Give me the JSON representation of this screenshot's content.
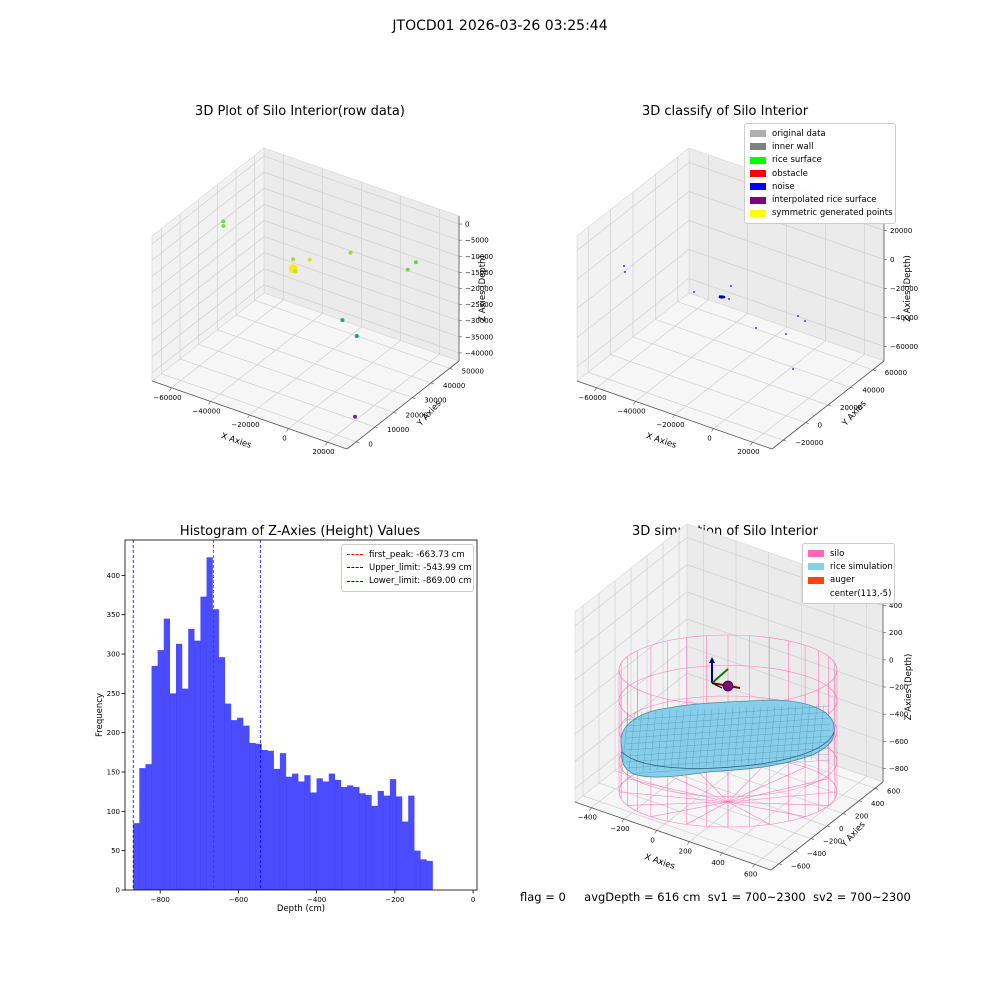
{
  "page": {
    "suptitle": "JTOCD01 2026-03-26 03:25:44"
  },
  "chart_data": [
    {
      "type": "scatter",
      "title": "3D Plot of Silo Interior(row data)",
      "xlabel": "X Axies",
      "ylabel": "Y Axies",
      "zlabel": "Z Axies (Depth)",
      "x_ticks": [
        "−60000",
        "−40000",
        "−20000",
        "0",
        "20000"
      ],
      "y_ticks": [
        "0",
        "10000",
        "20000",
        "30000",
        "40000",
        "50000"
      ],
      "z_ticks": [
        "−40000",
        "−35000",
        "−30000",
        "−25000",
        "−20000",
        "−15000",
        "−10000",
        "−5000",
        "0"
      ],
      "xlim": [
        -65000,
        30000
      ],
      "ylim": [
        0,
        55000
      ],
      "zlim": [
        -40000,
        0
      ],
      "points": [
        {
          "x": -62000,
          "y": 32000,
          "z": -9500,
          "color": "#7ad151"
        },
        {
          "x": -60000,
          "y": 30000,
          "z": -9500,
          "color": "#86d549"
        },
        {
          "x": -26000,
          "y": 30000,
          "z": -12000,
          "color": "#a0da39"
        },
        {
          "x": -22000,
          "y": 26000,
          "z": -12000,
          "color": "#fde725"
        },
        {
          "x": -21000,
          "y": 26000,
          "z": -12500,
          "color": "#c8e020"
        },
        {
          "x": -18000,
          "y": 30000,
          "z": -10500,
          "color": "#d2e21b"
        },
        {
          "x": -8000,
          "y": 40000,
          "z": -11000,
          "color": "#9fda3a"
        },
        {
          "x": -2000,
          "y": 30000,
          "z": -24000,
          "color": "#22a884"
        },
        {
          "x": 5000,
          "y": 30000,
          "z": -27000,
          "color": "#1f9e89"
        },
        {
          "x": 14000,
          "y": 46000,
          "z": -14000,
          "color": "#7ad151"
        },
        {
          "x": 12000,
          "y": 52000,
          "z": -15000,
          "color": "#6ece58"
        },
        {
          "x": 22000,
          "y": 12000,
          "z": -38000,
          "color": "#6a2c8f"
        }
      ]
    },
    {
      "type": "scatter",
      "title": "3D classify of Silo Interior",
      "xlabel": "X Axies",
      "ylabel": "Y Axies",
      "zlabel": "Z Axies (Depth)",
      "x_ticks": [
        "−60000",
        "−40000",
        "−20000",
        "0",
        "20000"
      ],
      "y_ticks": [
        "−20000",
        "0",
        "20000",
        "40000",
        "60000"
      ],
      "z_ticks": [
        "−60000",
        "−40000",
        "−20000",
        "0",
        "20000"
      ],
      "legend": [
        {
          "label": "original data",
          "color": "#b0b0b0"
        },
        {
          "label": "inner wall",
          "color": "#808080"
        },
        {
          "label": "rice surface",
          "color": "#00ff00"
        },
        {
          "label": "obstacle",
          "color": "#ff0000"
        },
        {
          "label": "noise",
          "color": "#0000ff"
        },
        {
          "label": "interpolated rice surface",
          "color": "#800080"
        },
        {
          "label": "symmetric generated points",
          "color": "#ffff00"
        }
      ]
    },
    {
      "type": "bar",
      "title": "Histogram of Z-Axies (Height) Values",
      "xlabel": "Depth (cm)",
      "ylabel": "Frequency",
      "xlim": [
        -890,
        10
      ],
      "ylim": [
        0,
        445
      ],
      "x_ticks": [
        -800,
        -600,
        -400,
        -200,
        0
      ],
      "x_tick_labels": [
        "−800",
        "−600",
        "−400",
        "−200",
        "0"
      ],
      "y_ticks": [
        0,
        50,
        100,
        150,
        200,
        250,
        300,
        350,
        400
      ],
      "bin_start": -869,
      "bin_width": 15.625,
      "bar_color": "#0000ff",
      "values": [
        85,
        155,
        160,
        285,
        305,
        345,
        250,
        313,
        256,
        332,
        317,
        373,
        423,
        357,
        296,
        237,
        216,
        219,
        209,
        187,
        186,
        178,
        177,
        154,
        174,
        144,
        148,
        138,
        146,
        124,
        142,
        138,
        148,
        140,
        131,
        133,
        131,
        123,
        121,
        107,
        126,
        120,
        141,
        119,
        87,
        120,
        50,
        39,
        37
      ],
      "lines": [
        {
          "label": "first_peak: -663.73 cm",
          "x": -663.73,
          "color": "#ff0000"
        },
        {
          "label": "Upper_limit: -543.99 cm",
          "x": -543.99,
          "color": "#0000ff"
        },
        {
          "label": "Lower_limit: -869.00 cm",
          "x": -869.0,
          "color": "#0000ff"
        }
      ]
    },
    {
      "type": "3d-surface",
      "title": "3D simulation of Silo Interior",
      "xlabel": "X Axies",
      "ylabel": "Y Axies",
      "zlabel": "Z Axies (Depth)",
      "x_ticks": [
        "−400",
        "−200",
        "0",
        "200",
        "400",
        "600"
      ],
      "y_ticks": [
        "−600",
        "−400",
        "−200",
        "0",
        "200",
        "400",
        "600"
      ],
      "z_ticks": [
        "−800",
        "−600",
        "−400",
        "−200",
        "0",
        "200",
        "400"
      ],
      "legend": [
        {
          "label": "silo",
          "color": "#ff69b4"
        },
        {
          "label": "rice simulation",
          "color": "#87ceeb"
        },
        {
          "label": "auger",
          "color": "#ff4500"
        },
        {
          "label": "center(113,-5)",
          "color": ""
        }
      ]
    }
  ],
  "status": {
    "flag": "flag = 0",
    "avg": "avgDepth = 616 cm",
    "sv1": "sv1 = 700~2300",
    "sv2": "sv2 = 700~2300"
  }
}
